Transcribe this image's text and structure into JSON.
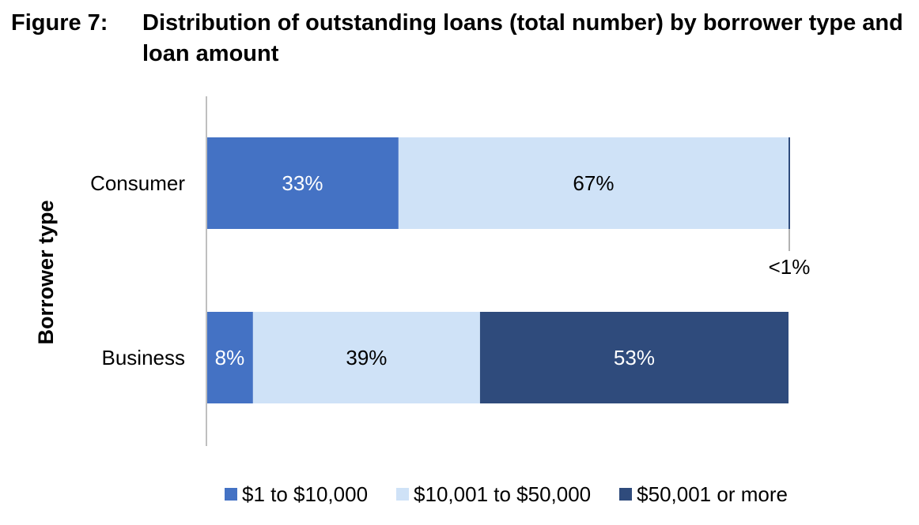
{
  "figure": {
    "number": "Figure 7:",
    "title": "Distribution of outstanding loans (total number) by borrower type and loan amount"
  },
  "chart_data": {
    "type": "bar",
    "orientation": "horizontal",
    "stacked": true,
    "categories": [
      "Consumer",
      "Business"
    ],
    "series": [
      {
        "name": "$1 to $10,000",
        "values": [
          33,
          8
        ],
        "labels": [
          "33%",
          "8%"
        ],
        "color": "#4472C4",
        "label_color": "#ffffff"
      },
      {
        "name": "$10,001 to $50,000",
        "values": [
          67,
          39
        ],
        "labels": [
          "67%",
          "39%"
        ],
        "color": "#CFE2F7",
        "label_color": "#000000"
      },
      {
        "name": "$50,001 or more",
        "values": [
          0.4,
          53
        ],
        "labels": [
          "<1%",
          "53%"
        ],
        "color": "#2F4B7C",
        "label_color": "#ffffff"
      }
    ],
    "ylabel": "Borrower type",
    "xlim": [
      0,
      100
    ],
    "grid": false,
    "legend_position": "bottom"
  }
}
